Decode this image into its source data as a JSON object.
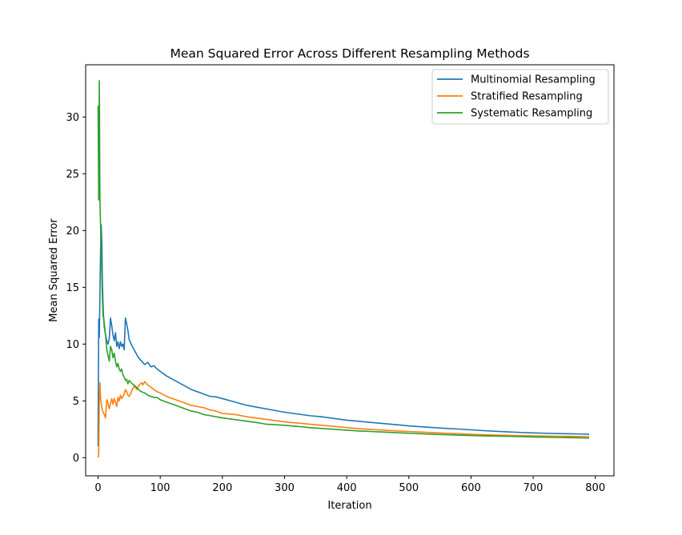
{
  "chart_data": {
    "type": "line",
    "title": "Mean Squared Error Across Different Resampling Methods",
    "xlabel": "Iteration",
    "ylabel": "Mean Squared Error",
    "xlim": [
      -20,
      830
    ],
    "ylim": [
      -1.6,
      34.6
    ],
    "xticks": [
      0,
      100,
      200,
      300,
      400,
      500,
      600,
      700,
      800
    ],
    "yticks": [
      0,
      5,
      10,
      15,
      20,
      25,
      30
    ],
    "grid": false,
    "legend_position": "top-right",
    "series": [
      {
        "name": "Multinomial Resampling",
        "color": "#1f77b4",
        "x": [
          0,
          1,
          2,
          3,
          4,
          5,
          6,
          7,
          8,
          9,
          10,
          12,
          14,
          16,
          18,
          20,
          22,
          24,
          26,
          28,
          30,
          32,
          34,
          36,
          38,
          40,
          42,
          44,
          46,
          48,
          50,
          55,
          60,
          65,
          70,
          75,
          80,
          85,
          90,
          95,
          100,
          110,
          120,
          130,
          140,
          150,
          160,
          170,
          180,
          190,
          200,
          220,
          240,
          260,
          280,
          300,
          320,
          340,
          360,
          380,
          400,
          420,
          440,
          460,
          480,
          500,
          520,
          540,
          560,
          580,
          600,
          620,
          640,
          660,
          680,
          700,
          720,
          740,
          760,
          780,
          790
        ],
        "values": [
          1.0,
          12.2,
          10.6,
          14.5,
          18.2,
          20.5,
          19.0,
          15.5,
          13.5,
          12.2,
          11.5,
          10.8,
          10.3,
          10.0,
          10.5,
          12.3,
          11.6,
          10.8,
          10.3,
          11.0,
          9.8,
          10.2,
          9.6,
          10.2,
          9.8,
          10.0,
          9.5,
          12.3,
          11.8,
          11.2,
          10.4,
          9.8,
          9.3,
          8.8,
          8.5,
          8.2,
          8.4,
          8.0,
          8.1,
          7.8,
          7.6,
          7.2,
          6.9,
          6.6,
          6.3,
          6.0,
          5.8,
          5.6,
          5.4,
          5.35,
          5.2,
          4.9,
          4.6,
          4.4,
          4.2,
          4.0,
          3.85,
          3.7,
          3.6,
          3.45,
          3.3,
          3.2,
          3.1,
          3.0,
          2.9,
          2.8,
          2.72,
          2.65,
          2.58,
          2.52,
          2.45,
          2.38,
          2.32,
          2.27,
          2.22,
          2.18,
          2.15,
          2.12,
          2.1,
          2.08,
          2.06
        ]
      },
      {
        "name": "Stratified Resampling",
        "color": "#ff7f0e",
        "x": [
          0,
          1,
          2,
          3,
          4,
          5,
          6,
          7,
          8,
          10,
          12,
          14,
          16,
          18,
          20,
          22,
          24,
          26,
          28,
          30,
          32,
          34,
          36,
          38,
          40,
          42,
          44,
          46,
          48,
          50,
          52,
          55,
          58,
          60,
          62,
          65,
          68,
          70,
          72,
          75,
          78,
          80,
          85,
          90,
          95,
          100,
          110,
          120,
          130,
          140,
          150,
          160,
          170,
          180,
          190,
          200,
          220,
          240,
          260,
          280,
          300,
          320,
          340,
          360,
          380,
          400,
          420,
          440,
          460,
          480,
          500,
          520,
          540,
          560,
          580,
          600,
          620,
          640,
          660,
          680,
          700,
          720,
          740,
          760,
          780,
          790
        ],
        "values": [
          0.0,
          0.3,
          5.0,
          6.6,
          5.2,
          4.8,
          4.5,
          4.2,
          4.0,
          3.8,
          3.5,
          5.1,
          4.8,
          4.3,
          4.8,
          5.2,
          4.7,
          5.2,
          4.9,
          4.5,
          5.3,
          5.0,
          5.5,
          5.2,
          5.4,
          5.6,
          6.0,
          5.8,
          5.5,
          5.4,
          5.6,
          6.0,
          6.3,
          6.2,
          6.0,
          6.3,
          6.5,
          6.6,
          6.4,
          6.7,
          6.5,
          6.4,
          6.2,
          6.0,
          5.8,
          5.7,
          5.4,
          5.2,
          5.0,
          4.8,
          4.6,
          4.5,
          4.4,
          4.2,
          4.1,
          3.9,
          3.8,
          3.6,
          3.45,
          3.3,
          3.15,
          3.05,
          2.95,
          2.85,
          2.75,
          2.65,
          2.55,
          2.48,
          2.42,
          2.36,
          2.3,
          2.25,
          2.2,
          2.15,
          2.1,
          2.06,
          2.02,
          1.99,
          1.96,
          1.94,
          1.92,
          1.9,
          1.88,
          1.87,
          1.86,
          1.85
        ]
      },
      {
        "name": "Systematic Resampling",
        "color": "#2ca02c",
        "x": [
          0,
          1,
          2,
          3,
          4,
          5,
          6,
          7,
          8,
          9,
          10,
          12,
          14,
          16,
          18,
          20,
          22,
          24,
          26,
          28,
          30,
          32,
          34,
          36,
          38,
          40,
          42,
          44,
          46,
          48,
          50,
          55,
          60,
          65,
          70,
          75,
          80,
          85,
          90,
          95,
          100,
          110,
          120,
          130,
          140,
          150,
          160,
          170,
          180,
          190,
          200,
          220,
          240,
          260,
          270,
          280,
          300,
          320,
          340,
          360,
          380,
          400,
          420,
          440,
          460,
          480,
          500,
          520,
          540,
          560,
          580,
          600,
          620,
          640,
          660,
          680,
          700,
          720,
          740,
          760,
          780,
          790
        ],
        "values": [
          31.0,
          22.7,
          33.2,
          22.6,
          20.5,
          18.0,
          16.2,
          14.0,
          12.5,
          12.3,
          11.8,
          10.8,
          9.5,
          9.0,
          8.5,
          9.8,
          9.5,
          8.8,
          9.2,
          8.5,
          8.0,
          8.3,
          7.8,
          7.6,
          7.8,
          7.3,
          7.1,
          6.8,
          6.9,
          6.5,
          6.8,
          6.5,
          6.3,
          6.0,
          5.8,
          5.7,
          5.5,
          5.4,
          5.3,
          5.3,
          5.1,
          4.9,
          4.7,
          4.5,
          4.3,
          4.1,
          4.0,
          3.8,
          3.7,
          3.6,
          3.5,
          3.35,
          3.2,
          3.05,
          2.95,
          2.92,
          2.85,
          2.75,
          2.65,
          2.57,
          2.5,
          2.42,
          2.35,
          2.3,
          2.25,
          2.2,
          2.15,
          2.1,
          2.06,
          2.02,
          1.98,
          1.95,
          1.92,
          1.9,
          1.88,
          1.85,
          1.82,
          1.8,
          1.78,
          1.76,
          1.74,
          1.72
        ]
      }
    ]
  }
}
